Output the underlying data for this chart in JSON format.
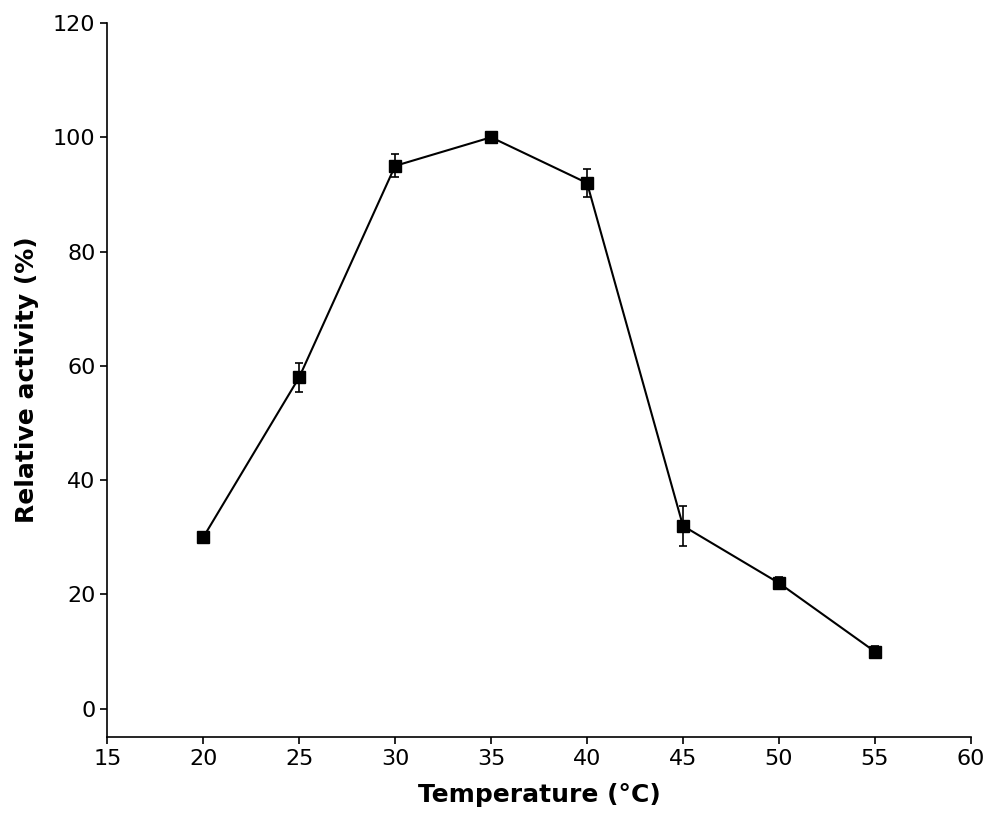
{
  "x": [
    20,
    25,
    30,
    35,
    40,
    45,
    50,
    55
  ],
  "y": [
    30,
    58,
    95,
    100,
    92,
    32,
    22,
    10
  ],
  "yerr": [
    1.0,
    2.5,
    2.0,
    1.0,
    2.5,
    3.5,
    1.0,
    1.0
  ],
  "xlim": [
    15,
    60
  ],
  "ylim": [
    -5,
    120
  ],
  "xticks": [
    15,
    20,
    25,
    30,
    35,
    40,
    45,
    50,
    55,
    60
  ],
  "yticks": [
    0,
    20,
    40,
    60,
    80,
    100,
    120
  ],
  "xlabel": "Temperature (°C)",
  "ylabel": "Relative activity (%)",
  "marker": "s",
  "marker_size": 8,
  "line_color": "#000000",
  "marker_color": "#000000",
  "marker_facecolor": "#000000",
  "linewidth": 1.5,
  "capsize": 3,
  "background_color": "#ffffff",
  "xlabel_fontsize": 18,
  "ylabel_fontsize": 18,
  "tick_fontsize": 16,
  "xlabel_fontweight": "bold",
  "ylabel_fontweight": "bold"
}
